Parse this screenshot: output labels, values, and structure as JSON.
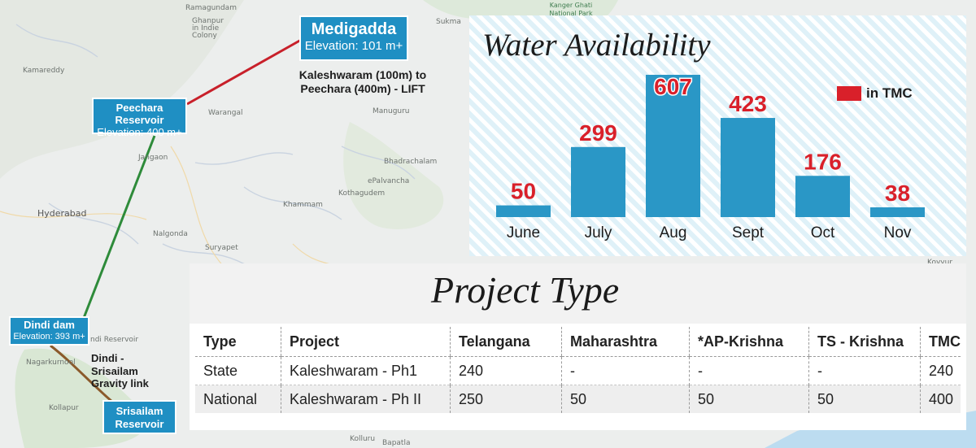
{
  "colors": {
    "bar": "#2a97c6",
    "value_label": "#d9202a",
    "legend_swatch": "#d9202a",
    "lift_line": "#c8202a",
    "gravity_line": "#2e8b3a",
    "link_line": "#8b5a2b",
    "box": "#1f8fc3"
  },
  "map": {
    "places": [
      "Ramagundam",
      "Ghanpur",
      "in Indie",
      "Colony",
      "Kamareddy",
      "Warangal",
      "Jangaon",
      "Hyderabad",
      "Nalgonda",
      "Khammam",
      "Kothagudem",
      "Suryapet",
      "Bhadrachalam",
      "ePalvancha",
      "Manuguru",
      "Kanger Ghati National Park",
      "Sukma",
      "Koyyur",
      "Kolluru",
      "Bapatla",
      "ndi Reservoir",
      "Nagarkurnool",
      "Kollapur"
    ],
    "medigadda": {
      "name": "Medigadda",
      "elevation": "Elevation: 101 m+"
    },
    "peechara": {
      "name": "Peechara Reservoir",
      "elevation": "Elevation: 400 m+"
    },
    "dindi": {
      "name": "Dindi dam",
      "elevation": "Elevation: 393 m+"
    },
    "srisailam": {
      "line1": "Srisailam",
      "line2": "Reservoir"
    },
    "kaleshwaram_note": {
      "line1": "Kaleshwaram (100m) to",
      "line2": "Peechara (400m) - LIFT"
    },
    "dindi_note": {
      "line1": "Dindi - Srisailam",
      "line2": "Gravity link"
    }
  },
  "chart_data": {
    "type": "bar",
    "title": "Water Availability",
    "legend": "in TMC",
    "categories": [
      "June",
      "July",
      "Aug",
      "Sept",
      "Oct",
      "Nov"
    ],
    "values": [
      50,
      299,
      607,
      423,
      176,
      38
    ],
    "ylim": [
      0,
      607
    ],
    "xlabel": "",
    "ylabel": ""
  },
  "project_table": {
    "title": "Project Type",
    "headers": [
      "Type",
      "Project",
      "Telangana",
      "Maharashtra",
      "*AP-Krishna",
      "TS - Krishna",
      "TMC"
    ],
    "rows": [
      [
        "State",
        "Kaleshwaram - Ph1",
        "240",
        "-",
        "-",
        "-",
        "240"
      ],
      [
        "National",
        "Kaleshwaram - Ph II",
        "250",
        "50",
        "50",
        "50",
        "400"
      ]
    ]
  }
}
